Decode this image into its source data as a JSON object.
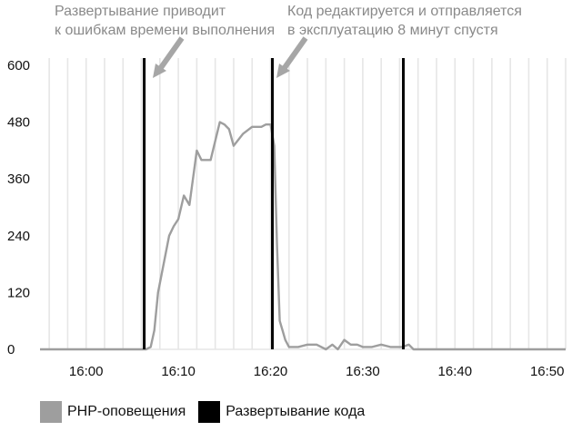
{
  "chart_data": {
    "type": "line",
    "title": "",
    "xlabel": "",
    "ylabel": "",
    "xlim": [
      "15:55",
      "16:52"
    ],
    "ylim": [
      0,
      600
    ],
    "x_ticks": [
      "16:00",
      "16:10",
      "16:20",
      "16:30",
      "16:40",
      "16:50"
    ],
    "y_ticks": [
      0,
      120,
      240,
      360,
      480,
      600
    ],
    "grid": "vertical-minutes",
    "legend": "bottom-left",
    "colors": {
      "php": "#9e9e9e",
      "deploy": "#000000",
      "grid": "#e6e6e6",
      "annotation": "#a6a6a6"
    },
    "series": [
      {
        "name": "PHP-оповещения",
        "type": "line",
        "x": [
          "15:55",
          "16:00",
          "16:05",
          "16:06.5",
          "16:07",
          "16:07.4",
          "16:07.8",
          "16:08.4",
          "16:09",
          "16:09.5",
          "16:10",
          "16:10.6",
          "16:11.2",
          "16:12",
          "16:12.5",
          "16:13.5",
          "16:14.5",
          "16:15",
          "16:15.5",
          "16:16",
          "16:17",
          "16:18",
          "16:19",
          "16:19.5",
          "16:20",
          "16:20.4",
          "16:20.7",
          "16:21",
          "16:21.3",
          "16:21.6",
          "16:22",
          "16:23",
          "16:24",
          "16:25",
          "16:26",
          "16:26.7",
          "16:27.3",
          "16:28",
          "16:28.7",
          "16:29.4",
          "16:30",
          "16:31",
          "16:32",
          "16:33",
          "16:33.7",
          "16:34.3",
          "16:35",
          "16:35.5",
          "16:36",
          "16:52"
        ],
        "values": [
          0,
          0,
          0,
          0,
          5,
          40,
          120,
          180,
          240,
          260,
          275,
          325,
          305,
          420,
          400,
          400,
          480,
          475,
          465,
          430,
          455,
          470,
          470,
          475,
          475,
          430,
          220,
          60,
          40,
          20,
          5,
          5,
          10,
          10,
          0,
          10,
          0,
          20,
          10,
          10,
          5,
          5,
          10,
          5,
          5,
          5,
          10,
          0,
          0,
          0
        ]
      },
      {
        "name": "Развертывание кода",
        "type": "vline",
        "x": [
          "16:06.3",
          "16:20.2",
          "16:34.4"
        ]
      }
    ],
    "annotations": [
      {
        "text_lines": [
          "Развертывание приводит",
          "к ошибкам времени выполнения"
        ],
        "arrow_to_x": "16:07"
      },
      {
        "text_lines": [
          "Код редактируется и отправляется",
          "в эксплуатацию 8 минут спустя"
        ],
        "arrow_to_x": "16:21"
      }
    ]
  }
}
